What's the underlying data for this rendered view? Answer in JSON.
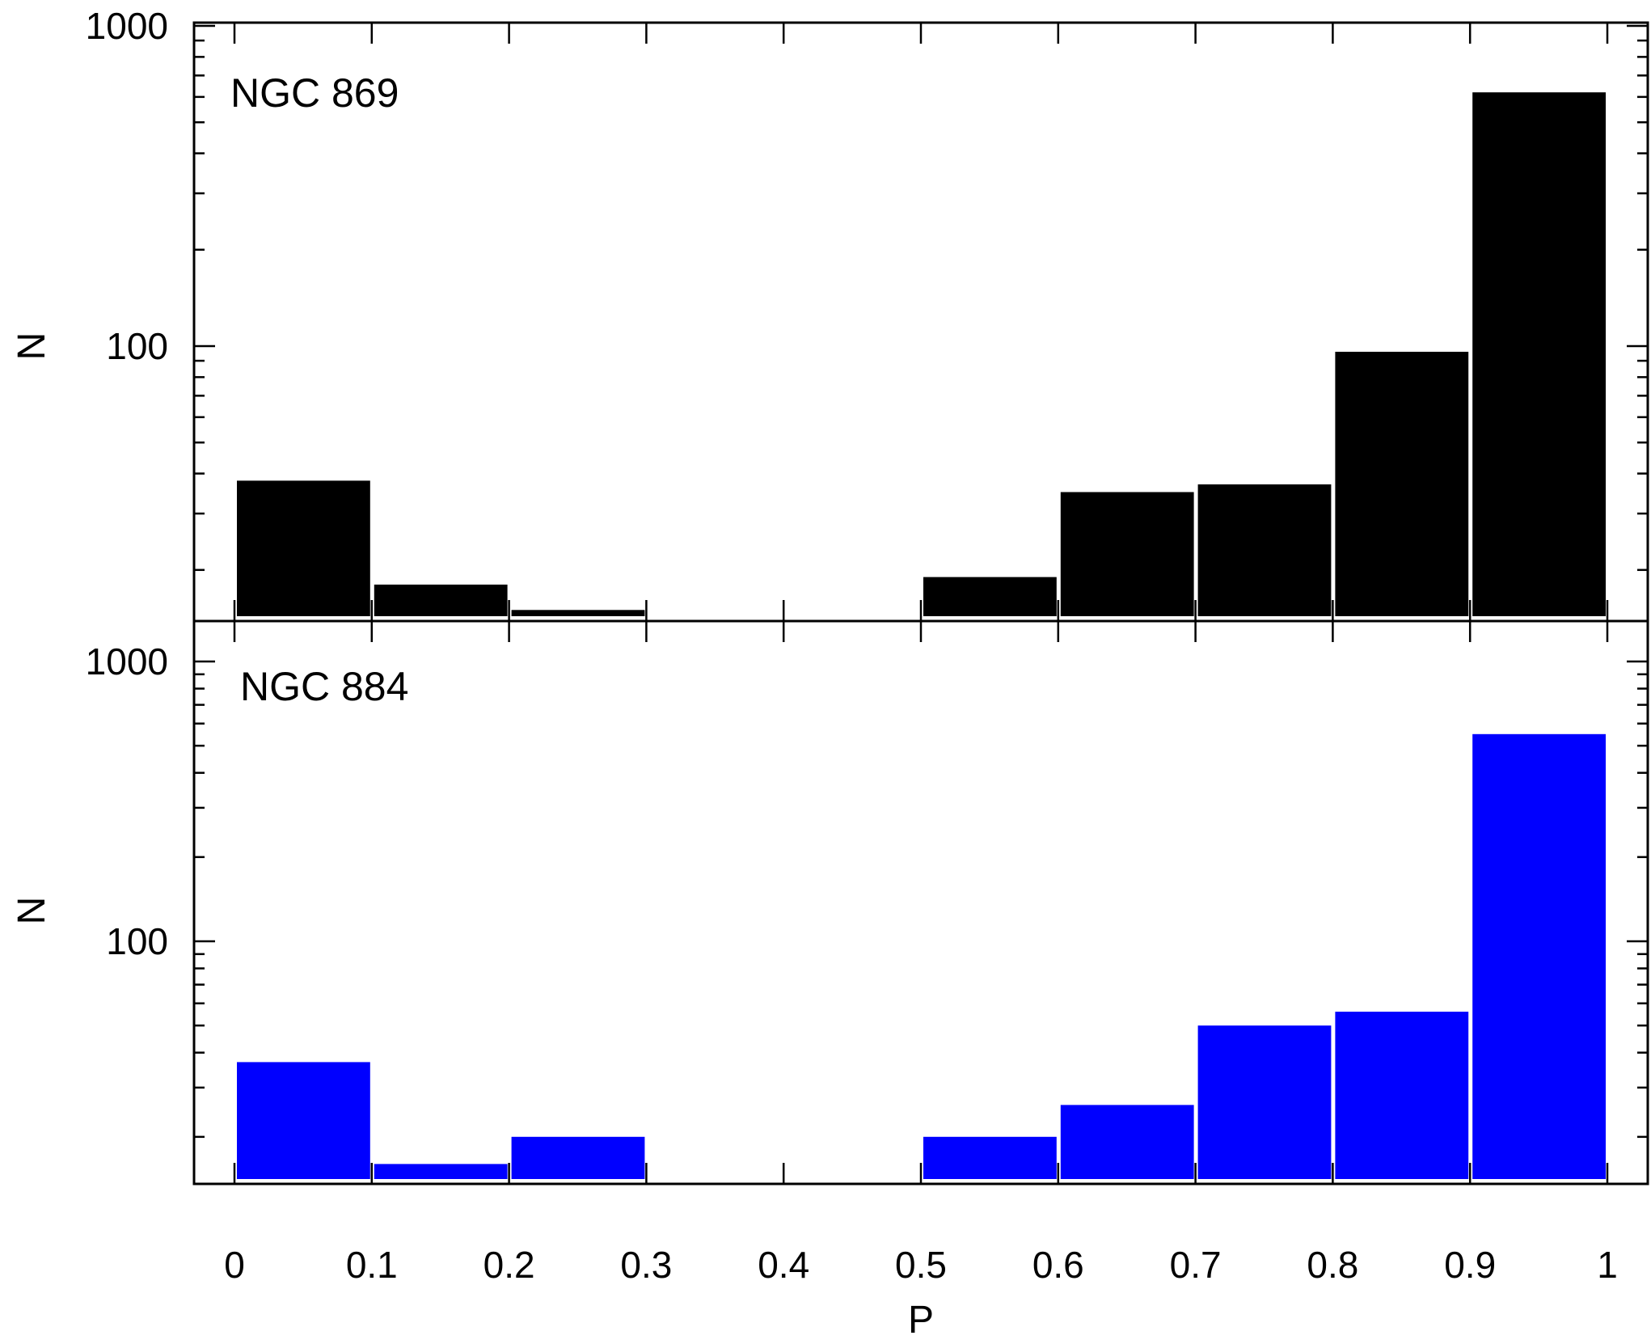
{
  "chart_data": [
    {
      "type": "bar",
      "title": "",
      "panel_label": "NGC 869",
      "xlabel": "",
      "ylabel": "N",
      "y_scale": "log",
      "ylim": [
        14,
        1000
      ],
      "xlim": [
        0,
        1
      ],
      "y_ticks": [
        100,
        1000
      ],
      "y_tick_labels": [
        "100",
        "1000"
      ],
      "bar_color": "#000000",
      "bins": [
        [
          0,
          0.1
        ],
        [
          0.1,
          0.2
        ],
        [
          0.2,
          0.3
        ],
        [
          0.3,
          0.4
        ],
        [
          0.4,
          0.5
        ],
        [
          0.5,
          0.6
        ],
        [
          0.6,
          0.7
        ],
        [
          0.7,
          0.8
        ],
        [
          0.8,
          0.9
        ],
        [
          0.9,
          1.0
        ]
      ],
      "values": [
        38,
        18,
        15,
        0,
        14,
        19,
        35,
        37,
        96,
        620
      ]
    },
    {
      "type": "bar",
      "title": "",
      "panel_label": "NGC 884",
      "xlabel": "P",
      "ylabel": "N",
      "y_scale": "log",
      "ylim": [
        12,
        1000
      ],
      "xlim": [
        0,
        1
      ],
      "y_ticks": [
        100,
        1000
      ],
      "y_tick_labels": [
        "100",
        "1000"
      ],
      "x_ticks": [
        0,
        0.1,
        0.2,
        0.3,
        0.4,
        0.5,
        0.6,
        0.7,
        0.8,
        0.9,
        1
      ],
      "x_tick_labels": [
        "0",
        "0.1",
        "0.2",
        "0.3",
        "0.4",
        "0.5",
        "0.6",
        "0.7",
        "0.8",
        "0.9",
        "1"
      ],
      "bar_color": "#0000ff",
      "bins": [
        [
          0,
          0.1
        ],
        [
          0.1,
          0.2
        ],
        [
          0.2,
          0.3
        ],
        [
          0.3,
          0.4
        ],
        [
          0.4,
          0.5
        ],
        [
          0.5,
          0.6
        ],
        [
          0.6,
          0.7
        ],
        [
          0.7,
          0.8
        ],
        [
          0.8,
          0.9
        ],
        [
          0.9,
          1.0
        ]
      ],
      "values": [
        37,
        16,
        20,
        0,
        0,
        20,
        26,
        50,
        56,
        550
      ]
    }
  ]
}
